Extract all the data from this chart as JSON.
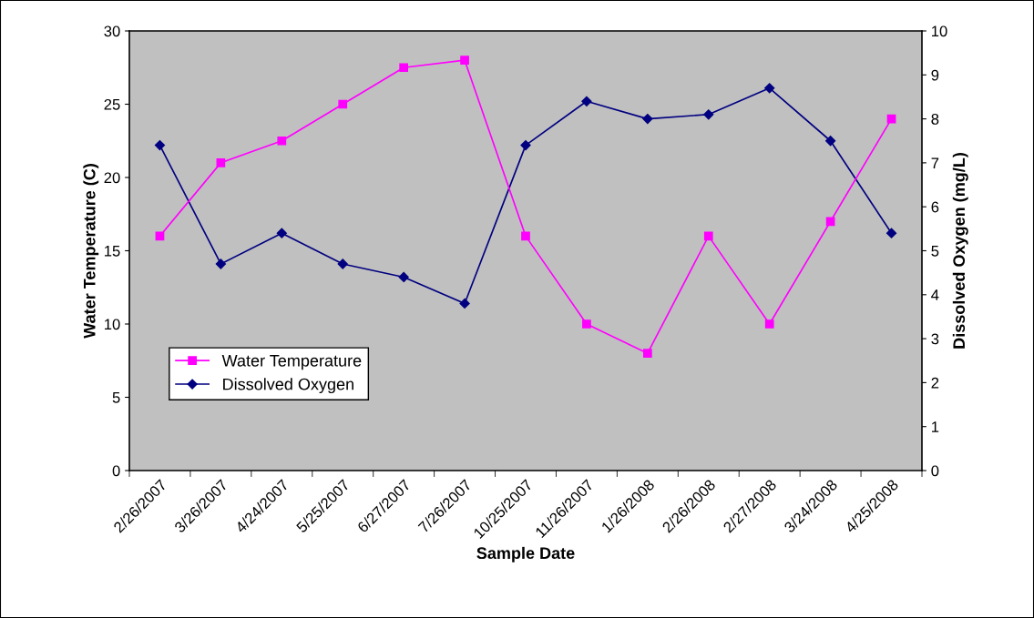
{
  "chart_data": {
    "type": "line",
    "xlabel": "Sample Date",
    "ylabel": "Water Temperature (C)",
    "y2label": "Dissolved Oxygen (mg/L)",
    "categories": [
      "2/26/2007",
      "3/26/2007",
      "4/24/2007",
      "5/25/2007",
      "6/27/2007",
      "7/26/2007",
      "10/25/2007",
      "11/26/2007",
      "1/26/2008",
      "2/26/2008",
      "2/27/2008",
      "3/24/2008",
      "4/25/2008"
    ],
    "series": [
      {
        "name": "Water Temperature",
        "color": "#ff00ff",
        "marker": "square",
        "values": [
          16,
          21,
          22.5,
          25,
          27.5,
          28,
          16,
          10,
          8,
          16,
          10,
          17,
          24
        ]
      },
      {
        "name": "Dissolved Oxygen",
        "color": "#000080",
        "marker": "diamond",
        "axis": "y2",
        "values": [
          7.4,
          4.7,
          5.4,
          4.7,
          4.4,
          3.8,
          7.4,
          8.4,
          8.0,
          8.1,
          8.7,
          7.5,
          5.4
        ]
      }
    ],
    "ylim": [
      0,
      30
    ],
    "yticks": [
      0,
      5,
      10,
      15,
      20,
      25,
      30
    ],
    "y2lim": [
      0,
      10
    ],
    "y2ticks": [
      0,
      1,
      2,
      3,
      4,
      5,
      6,
      7,
      8,
      9,
      10
    ],
    "grid": false,
    "legend": "left"
  }
}
